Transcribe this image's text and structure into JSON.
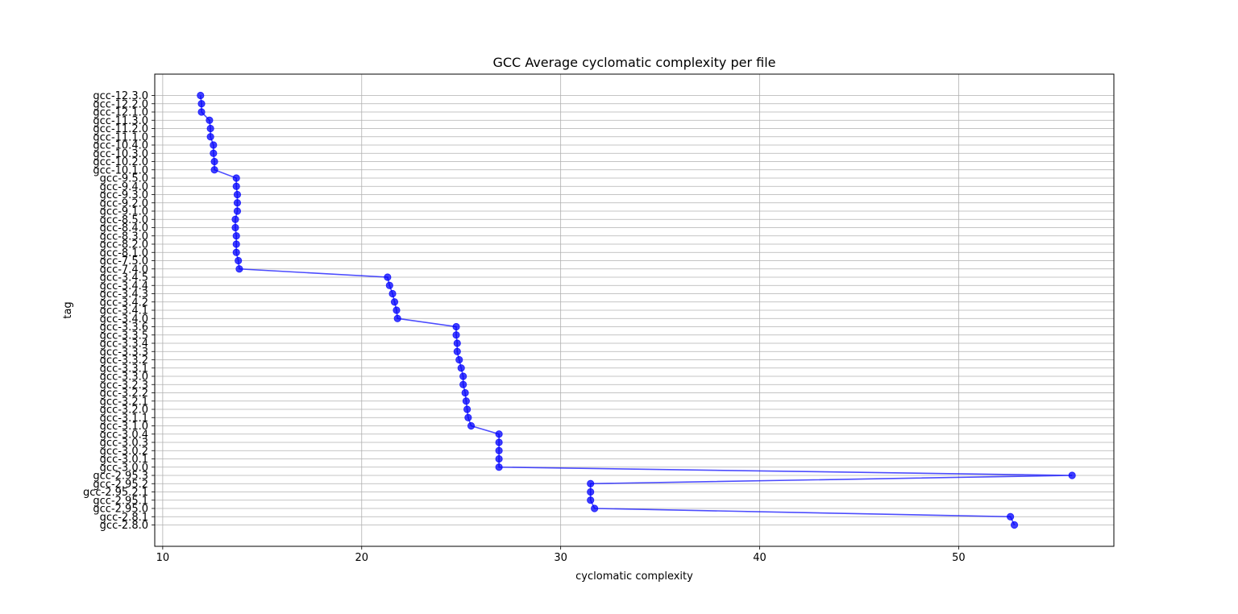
{
  "chart_data": {
    "type": "line",
    "title": "GCC Average cyclomatic complexity per file",
    "xlabel": "cyclomatic complexity",
    "ylabel": "tag",
    "xlim": [
      9.6,
      57.8
    ],
    "x_ticks": [
      10,
      20,
      30,
      40,
      50
    ],
    "grid": true,
    "marker": "circle",
    "color": "#0000ff",
    "series": [
      {
        "points": [
          {
            "tag": "gcc-12.3.0",
            "value": 11.9
          },
          {
            "tag": "gcc-12.2.0",
            "value": 11.95
          },
          {
            "tag": "gcc-12.1.0",
            "value": 11.95
          },
          {
            "tag": "gcc-11.3.0",
            "value": 12.35
          },
          {
            "tag": "gcc-11.2.0",
            "value": 12.4
          },
          {
            "tag": "gcc-11.1.0",
            "value": 12.4
          },
          {
            "tag": "gcc-10.4.0",
            "value": 12.55
          },
          {
            "tag": "gcc-10.3.0",
            "value": 12.55
          },
          {
            "tag": "gcc-10.2.0",
            "value": 12.6
          },
          {
            "tag": "gcc-10.1.0",
            "value": 12.6
          },
          {
            "tag": "gcc-9.5.0",
            "value": 13.7
          },
          {
            "tag": "gcc-9.4.0",
            "value": 13.7
          },
          {
            "tag": "gcc-9.3.0",
            "value": 13.75
          },
          {
            "tag": "gcc-9.2.0",
            "value": 13.75
          },
          {
            "tag": "gcc-9.1.0",
            "value": 13.75
          },
          {
            "tag": "gcc-8.5.0",
            "value": 13.65
          },
          {
            "tag": "gcc-8.4.0",
            "value": 13.65
          },
          {
            "tag": "gcc-8.3.0",
            "value": 13.7
          },
          {
            "tag": "gcc-8.2.0",
            "value": 13.7
          },
          {
            "tag": "gcc-8.1.0",
            "value": 13.7
          },
          {
            "tag": "gcc-7.5.0",
            "value": 13.8
          },
          {
            "tag": "gcc-7.4.0",
            "value": 13.85
          },
          {
            "tag": "gcc-3.4.5",
            "value": 21.3
          },
          {
            "tag": "gcc-3.4.4",
            "value": 21.4
          },
          {
            "tag": "gcc-3.4.3",
            "value": 21.55
          },
          {
            "tag": "gcc-3.4.2",
            "value": 21.65
          },
          {
            "tag": "gcc-3.4.1",
            "value": 21.75
          },
          {
            "tag": "gcc-3.4.0",
            "value": 21.8
          },
          {
            "tag": "gcc-3.3.6",
            "value": 24.75
          },
          {
            "tag": "gcc-3.3.5",
            "value": 24.75
          },
          {
            "tag": "gcc-3.3.4",
            "value": 24.8
          },
          {
            "tag": "gcc-3.3.3",
            "value": 24.8
          },
          {
            "tag": "gcc-3.3.2",
            "value": 24.9
          },
          {
            "tag": "gcc-3.3.1",
            "value": 25.0
          },
          {
            "tag": "gcc-3.3.0",
            "value": 25.1
          },
          {
            "tag": "gcc-3.2.3",
            "value": 25.1
          },
          {
            "tag": "gcc-3.2.2",
            "value": 25.2
          },
          {
            "tag": "gcc-3.2.1",
            "value": 25.25
          },
          {
            "tag": "gcc-3.2.0",
            "value": 25.3
          },
          {
            "tag": "gcc-3.1.1",
            "value": 25.35
          },
          {
            "tag": "gcc-3.1.0",
            "value": 25.5
          },
          {
            "tag": "gcc-3.0.4",
            "value": 26.9
          },
          {
            "tag": "gcc-3.0.3",
            "value": 26.9
          },
          {
            "tag": "gcc-3.0.2",
            "value": 26.9
          },
          {
            "tag": "gcc-3.0.1",
            "value": 26.9
          },
          {
            "tag": "gcc-3.0.0",
            "value": 26.9
          },
          {
            "tag": "gcc-2.95.3",
            "value": 55.7
          },
          {
            "tag": "gcc-2.95.2",
            "value": 31.5
          },
          {
            "tag": "gcc-2.95.2.1",
            "value": 31.5
          },
          {
            "tag": "gcc-2.95.1",
            "value": 31.5
          },
          {
            "tag": "gcc-2.95.0",
            "value": 31.7
          },
          {
            "tag": "gcc-2.8.1",
            "value": 52.6
          },
          {
            "tag": "gcc-2.8.0",
            "value": 52.8
          }
        ]
      }
    ]
  }
}
